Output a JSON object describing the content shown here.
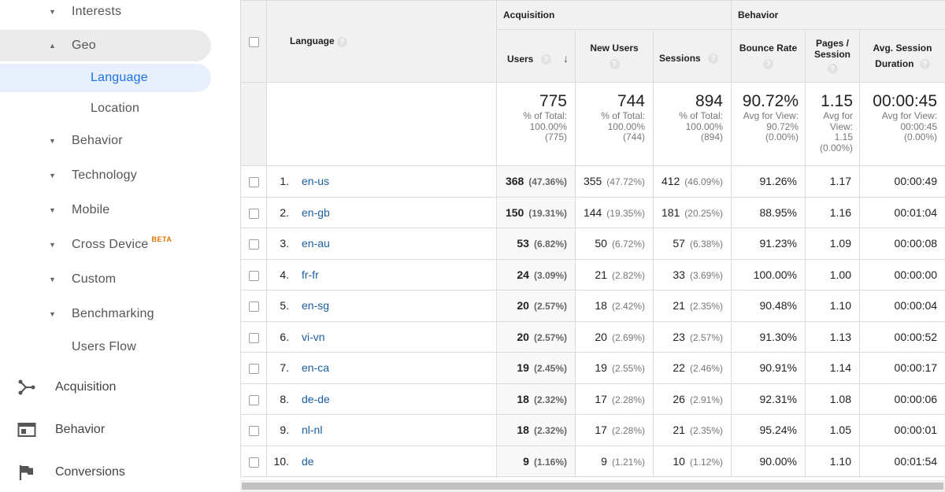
{
  "sidebar": {
    "nav": [
      {
        "label": "Interests",
        "caret": "▼"
      },
      {
        "label": "Geo",
        "caret": "▲"
      },
      {
        "label": "Language"
      },
      {
        "label": "Location"
      },
      {
        "label": "Behavior",
        "caret": "▼"
      },
      {
        "label": "Technology",
        "caret": "▼"
      },
      {
        "label": "Mobile",
        "caret": "▼"
      },
      {
        "label": "Cross Device",
        "caret": "▼",
        "badge": "BETA"
      },
      {
        "label": "Custom",
        "caret": "▼"
      },
      {
        "label": "Benchmarking",
        "caret": "▼"
      },
      {
        "label": "Users Flow"
      }
    ],
    "sections": [
      {
        "label": "Acquisition",
        "icon": "acquisition-icon"
      },
      {
        "label": "Behavior",
        "icon": "behavior-icon"
      },
      {
        "label": "Conversions",
        "icon": "flag-icon"
      }
    ]
  },
  "table": {
    "dimension_header": "Language",
    "group_acquisition": "Acquisition",
    "group_behavior": "Behavior",
    "columns": {
      "users": "Users",
      "new_users": "New Users",
      "sessions": "Sessions",
      "bounce_rate": "Bounce Rate",
      "pages_session_1": "Pages /",
      "pages_session_2": "Session",
      "avg_duration_1": "Avg. Session",
      "avg_duration_2": "Duration"
    },
    "help_glyph": "?",
    "sort_glyph": "↓",
    "totals": {
      "users": {
        "value": "775",
        "l1": "% of Total:",
        "l2": "100.00%",
        "l3": "(775)"
      },
      "new_users": {
        "value": "744",
        "l1": "% of Total:",
        "l2": "100.00%",
        "l3": "(744)"
      },
      "sessions": {
        "value": "894",
        "l1": "% of Total:",
        "l2": "100.00%",
        "l3": "(894)"
      },
      "bounce_rate": {
        "value": "90.72%",
        "l1": "Avg for View:",
        "l2": "90.72%",
        "l3": "(0.00%)"
      },
      "pages_session": {
        "value": "1.15",
        "l1": "Avg for",
        "l2": "View:",
        "l3": "1.15",
        "l4": "(0.00%)"
      },
      "avg_duration": {
        "value": "00:00:45",
        "l1": "Avg for View:",
        "l2": "00:00:45",
        "l3": "(0.00%)"
      }
    },
    "rows": [
      {
        "rank": "1.",
        "lang": "en-us",
        "users": "368",
        "users_pct": "(47.36%)",
        "new_users": "355",
        "new_users_pct": "(47.72%)",
        "sessions": "412",
        "sessions_pct": "(46.09%)",
        "bounce": "91.26%",
        "pages": "1.17",
        "duration": "00:00:49"
      },
      {
        "rank": "2.",
        "lang": "en-gb",
        "users": "150",
        "users_pct": "(19.31%)",
        "new_users": "144",
        "new_users_pct": "(19.35%)",
        "sessions": "181",
        "sessions_pct": "(20.25%)",
        "bounce": "88.95%",
        "pages": "1.16",
        "duration": "00:01:04"
      },
      {
        "rank": "3.",
        "lang": "en-au",
        "users": "53",
        "users_pct": "(6.82%)",
        "new_users": "50",
        "new_users_pct": "(6.72%)",
        "sessions": "57",
        "sessions_pct": "(6.38%)",
        "bounce": "91.23%",
        "pages": "1.09",
        "duration": "00:00:08"
      },
      {
        "rank": "4.",
        "lang": "fr-fr",
        "users": "24",
        "users_pct": "(3.09%)",
        "new_users": "21",
        "new_users_pct": "(2.82%)",
        "sessions": "33",
        "sessions_pct": "(3.69%)",
        "bounce": "100.00%",
        "pages": "1.00",
        "duration": "00:00:00"
      },
      {
        "rank": "5.",
        "lang": "en-sg",
        "users": "20",
        "users_pct": "(2.57%)",
        "new_users": "18",
        "new_users_pct": "(2.42%)",
        "sessions": "21",
        "sessions_pct": "(2.35%)",
        "bounce": "90.48%",
        "pages": "1.10",
        "duration": "00:00:04"
      },
      {
        "rank": "6.",
        "lang": "vi-vn",
        "users": "20",
        "users_pct": "(2.57%)",
        "new_users": "20",
        "new_users_pct": "(2.69%)",
        "sessions": "23",
        "sessions_pct": "(2.57%)",
        "bounce": "91.30%",
        "pages": "1.13",
        "duration": "00:00:52"
      },
      {
        "rank": "7.",
        "lang": "en-ca",
        "users": "19",
        "users_pct": "(2.45%)",
        "new_users": "19",
        "new_users_pct": "(2.55%)",
        "sessions": "22",
        "sessions_pct": "(2.46%)",
        "bounce": "90.91%",
        "pages": "1.14",
        "duration": "00:00:17"
      },
      {
        "rank": "8.",
        "lang": "de-de",
        "users": "18",
        "users_pct": "(2.32%)",
        "new_users": "17",
        "new_users_pct": "(2.28%)",
        "sessions": "26",
        "sessions_pct": "(2.91%)",
        "bounce": "92.31%",
        "pages": "1.08",
        "duration": "00:00:06"
      },
      {
        "rank": "9.",
        "lang": "nl-nl",
        "users": "18",
        "users_pct": "(2.32%)",
        "new_users": "17",
        "new_users_pct": "(2.28%)",
        "sessions": "21",
        "sessions_pct": "(2.35%)",
        "bounce": "95.24%",
        "pages": "1.05",
        "duration": "00:00:01"
      },
      {
        "rank": "10.",
        "lang": "de",
        "users": "9",
        "users_pct": "(1.16%)",
        "new_users": "9",
        "new_users_pct": "(1.21%)",
        "sessions": "10",
        "sessions_pct": "(1.12%)",
        "bounce": "90.00%",
        "pages": "1.10",
        "duration": "00:01:54"
      }
    ]
  }
}
